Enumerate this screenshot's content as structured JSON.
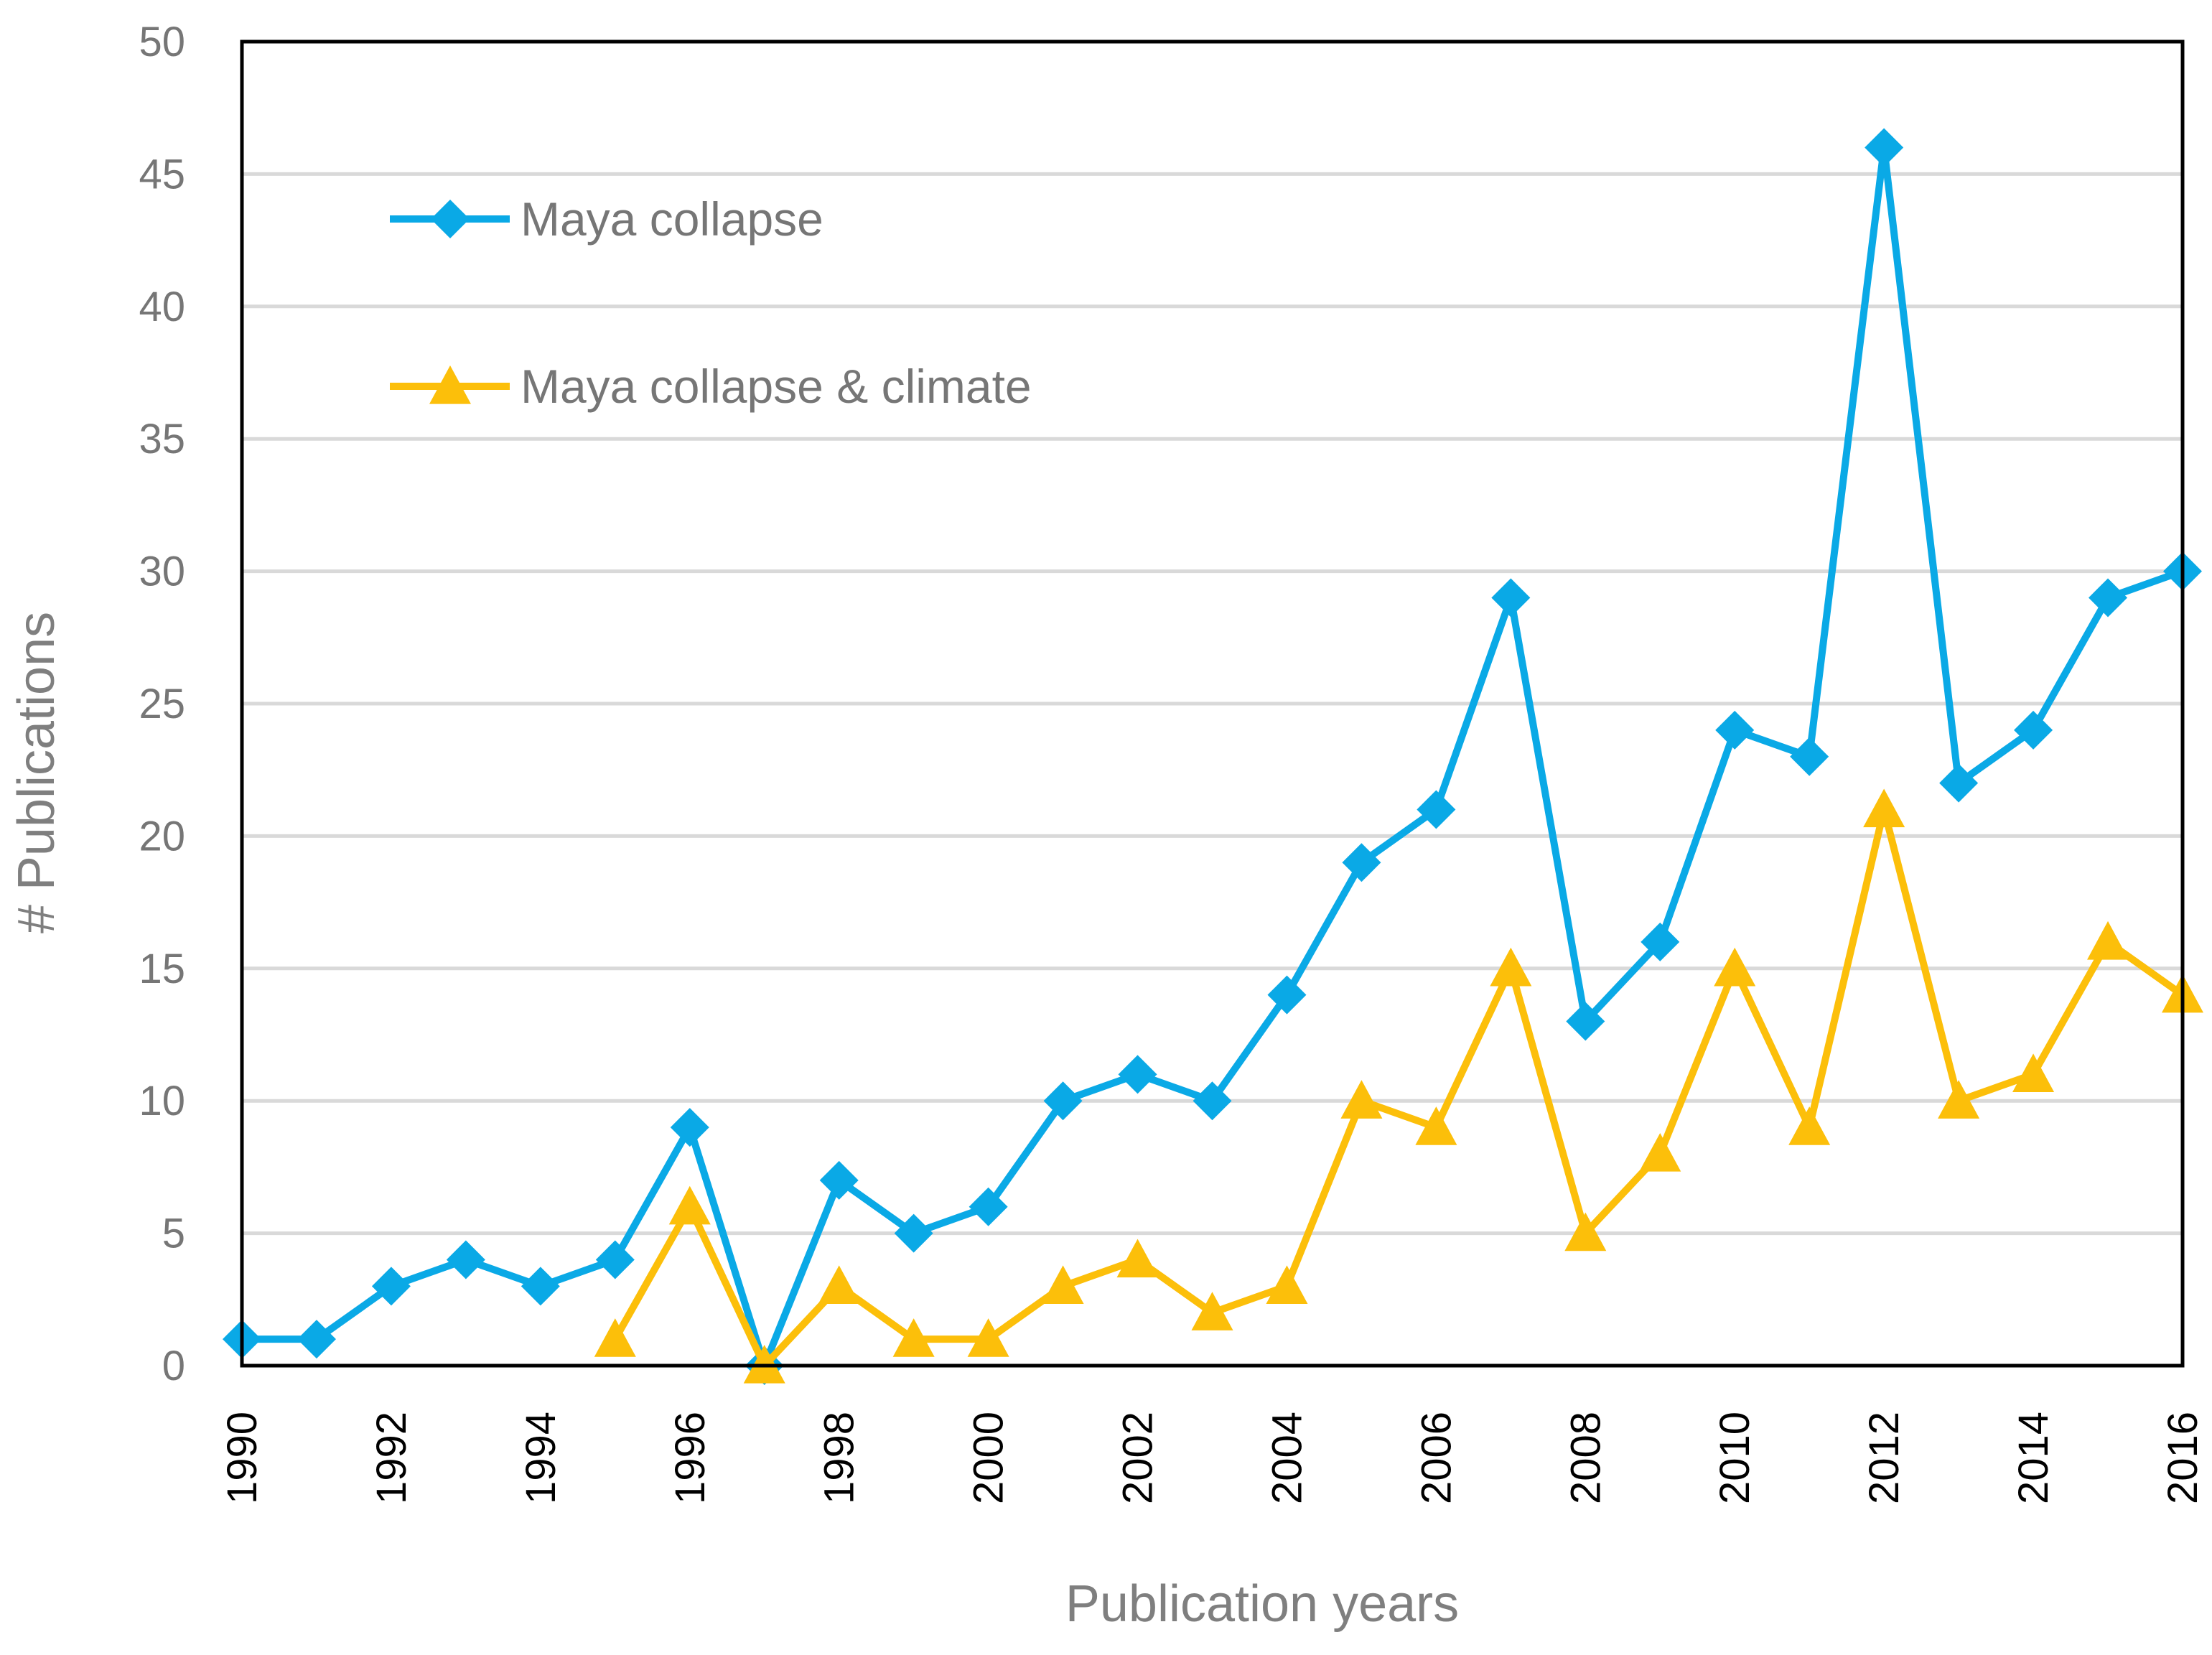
{
  "colors": {
    "series1": "#0aa9e6",
    "series2": "#fcbf0a",
    "grid": "#d9d9d9",
    "axis": "#000000",
    "ytick_text": "#767676",
    "xtick_text": "#000000",
    "title_text": "#7f7f7f"
  },
  "chart_data": {
    "type": "line",
    "title": "",
    "xlabel": "Publication years",
    "ylabel": "# Publications",
    "xlim": [
      1990,
      2016
    ],
    "ylim": [
      0,
      50
    ],
    "y_ticks": [
      0,
      5,
      10,
      15,
      20,
      25,
      30,
      35,
      40,
      45,
      50
    ],
    "x_ticks": [
      1990,
      1992,
      1994,
      1996,
      1998,
      2000,
      2002,
      2004,
      2006,
      2008,
      2010,
      2012,
      2014,
      2016
    ],
    "x_tick_labels": [
      "1990",
      "1992",
      "1994",
      "1996",
      "1998",
      "2000",
      "2002",
      "2004",
      "2006",
      "2008",
      "2010",
      "2012",
      "2014",
      "2016"
    ],
    "grid": "horizontal",
    "legend_position": "top-left",
    "series": [
      {
        "name": "Maya collapse",
        "marker": "diamond",
        "color": "#0aa9e6",
        "x": [
          1990,
          1991,
          1992,
          1993,
          1994,
          1995,
          1996,
          1997,
          1998,
          1999,
          2000,
          2001,
          2002,
          2003,
          2004,
          2005,
          2006,
          2007,
          2008,
          2009,
          2010,
          2011,
          2012,
          2013,
          2014,
          2015,
          2016
        ],
        "values": [
          1,
          1,
          3,
          4,
          3,
          4,
          9,
          0,
          7,
          5,
          6,
          10,
          11,
          10,
          14,
          19,
          21,
          29,
          13,
          16,
          24,
          23,
          46,
          22,
          24,
          29,
          30
        ]
      },
      {
        "name": "Maya collapse & climate",
        "marker": "triangle",
        "color": "#fcbf0a",
        "x": [
          1995,
          1996,
          1997,
          1998,
          1999,
          2000,
          2001,
          2002,
          2003,
          2004,
          2005,
          2006,
          2007,
          2008,
          2009,
          2010,
          2011,
          2012,
          2013,
          2014,
          2015,
          2016
        ],
        "values": [
          1,
          6,
          0,
          3,
          1,
          1,
          3,
          4,
          2,
          3,
          10,
          9,
          15,
          5,
          8,
          15,
          9,
          21,
          10,
          11,
          16,
          14
        ]
      }
    ]
  }
}
